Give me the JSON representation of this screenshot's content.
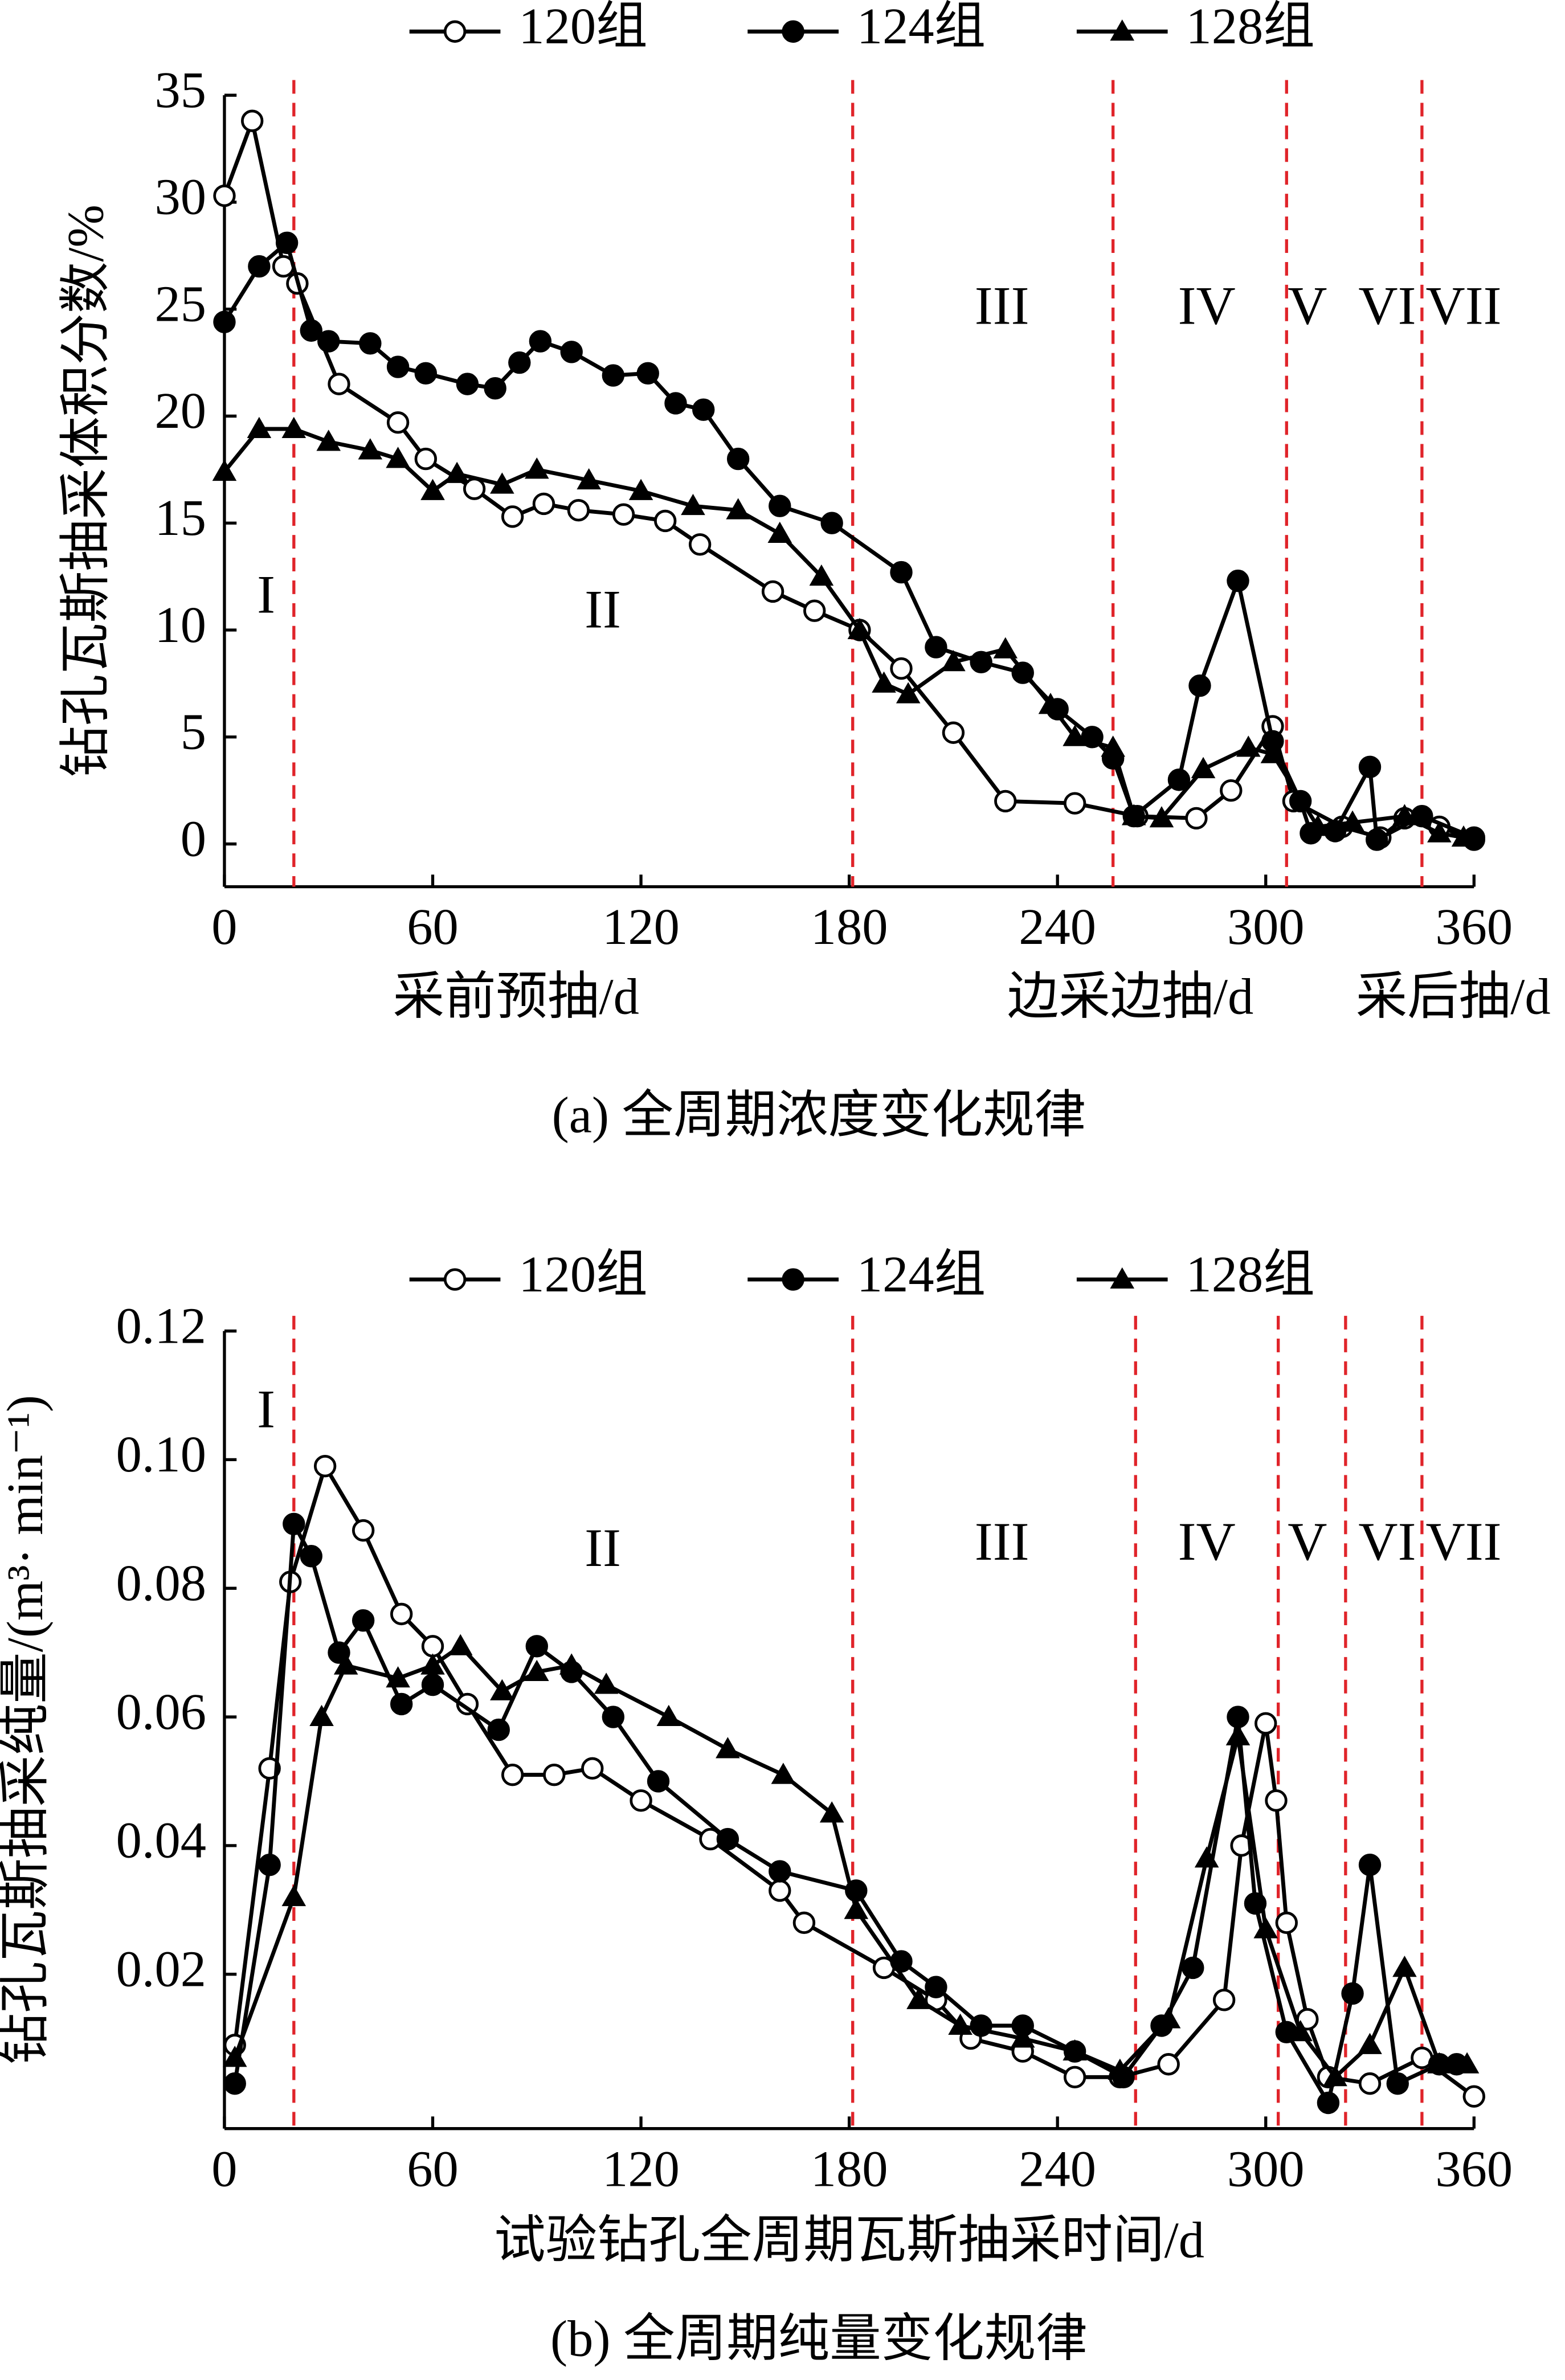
{
  "chart_data": [
    {
      "type": "line",
      "ylabel": "钻孔瓦斯抽采体积分数/%",
      "xlabels": [
        {
          "text": "采前预抽/d",
          "x": 84
        },
        {
          "text": "边采边抽/d",
          "x": 261
        },
        {
          "text": "采后抽/d",
          "x": 354
        }
      ],
      "caption": "(a)  全周期浓度变化规律",
      "xlim": [
        0,
        360
      ],
      "xticks": [
        0,
        60,
        120,
        180,
        240,
        300,
        360
      ],
      "ylim": [
        -2,
        35
      ],
      "yticks": [
        0,
        5,
        10,
        15,
        20,
        25,
        30,
        35
      ],
      "vlines": [
        20,
        181,
        256,
        306,
        345
      ],
      "vline_color": "#e0242a",
      "annotations": [
        {
          "text": "I",
          "x": 12,
          "y": 11.4
        },
        {
          "text": "II",
          "x": 109,
          "y": 10.7
        },
        {
          "text": "III",
          "x": 224,
          "y": 24.9
        },
        {
          "text": "IV",
          "x": 283,
          "y": 24.9
        },
        {
          "text": "V",
          "x": 312,
          "y": 24.9
        },
        {
          "text": "VI",
          "x": 335,
          "y": 24.9
        },
        {
          "text": "VII",
          "x": 357,
          "y": 24.9
        }
      ],
      "series": [
        {
          "name": "120组",
          "color": "#000000",
          "marker": "circle-open",
          "x": [
            0,
            8,
            17,
            21,
            33,
            50,
            58,
            72,
            83,
            92,
            102,
            115,
            127,
            137,
            158,
            170,
            183,
            195,
            210,
            225,
            245,
            263,
            280,
            290,
            302,
            308,
            322,
            333,
            340,
            350,
            360
          ],
          "values": [
            30.3,
            33.8,
            27,
            26.2,
            21.5,
            19.7,
            18,
            16.6,
            15.3,
            15.9,
            15.6,
            15.4,
            15.1,
            14,
            11.8,
            10.9,
            10,
            8.2,
            5.2,
            2,
            1.9,
            1.3,
            1.2,
            2.5,
            5.5,
            2,
            0.8,
            0.3,
            1.2,
            0.8,
            0.2
          ]
        },
        {
          "name": "124组",
          "color": "#000000",
          "marker": "circle",
          "x": [
            0,
            10,
            18,
            25,
            30,
            42,
            50,
            58,
            70,
            78,
            85,
            91,
            100,
            112,
            122,
            130,
            138,
            148,
            160,
            175,
            195,
            205,
            218,
            230,
            240,
            250,
            256,
            262,
            275,
            281,
            292,
            302,
            310,
            313,
            320,
            330,
            332,
            345,
            360
          ],
          "values": [
            24.4,
            27,
            28.1,
            24,
            23.5,
            23.4,
            22.3,
            22,
            21.5,
            21.3,
            22.5,
            23.5,
            23,
            21.9,
            22,
            20.6,
            20.3,
            18,
            15.8,
            15,
            12.7,
            9.2,
            8.5,
            8,
            6.3,
            5,
            4,
            1.3,
            3,
            7.4,
            12.3,
            4.8,
            2,
            0.5,
            0.6,
            3.6,
            0.2,
            1.3,
            0.3
          ]
        },
        {
          "name": "128组",
          "color": "#000000",
          "marker": "triangle",
          "x": [
            0,
            10,
            20,
            30,
            42,
            50,
            60,
            67,
            80,
            90,
            105,
            120,
            135,
            148,
            160,
            172,
            183,
            190,
            197,
            210,
            225,
            238,
            245,
            256,
            262,
            270,
            282,
            295,
            302,
            315,
            325,
            340,
            350,
            357
          ],
          "values": [
            17.4,
            19.4,
            19.4,
            18.8,
            18.4,
            18,
            16.5,
            17.3,
            16.8,
            17.5,
            17,
            16.5,
            15.8,
            15.6,
            14.5,
            12.5,
            10,
            7.5,
            7,
            8.5,
            9.1,
            6.5,
            5,
            4.5,
            1.3,
            1.2,
            3.5,
            4.5,
            4.2,
            0.8,
            1,
            1.3,
            0.5,
            0.3
          ]
        }
      ]
    },
    {
      "type": "line",
      "ylabel": "钻孔瓦斯抽采纯量/(m³· min⁻¹)",
      "xlabel": "试验钻孔全周期瓦斯抽采时间/d",
      "caption": "(b)  全周期纯量变化规律",
      "xlim": [
        0,
        360
      ],
      "xticks": [
        0,
        60,
        120,
        180,
        240,
        300,
        360
      ],
      "ylim": [
        -0.004,
        0.12
      ],
      "yticks": [
        0.02,
        0.04,
        0.06,
        0.08,
        {
          "value": 0.1,
          "label": "0.10"
        },
        0.12
      ],
      "vlines": [
        20,
        181,
        262.5,
        303.6,
        323,
        345
      ],
      "vline_color": "#e0242a",
      "annotations": [
        {
          "text": "I",
          "x": 12,
          "y": 0.107
        },
        {
          "text": "II",
          "x": 109,
          "y": 0.0854
        },
        {
          "text": "III",
          "x": 224,
          "y": 0.0864
        },
        {
          "text": "IV",
          "x": 283,
          "y": 0.0864
        },
        {
          "text": "V",
          "x": 312,
          "y": 0.0864
        },
        {
          "text": "VI",
          "x": 335,
          "y": 0.0864
        },
        {
          "text": "VII",
          "x": 357,
          "y": 0.0864
        }
      ],
      "series": [
        {
          "name": "120组",
          "color": "#000000",
          "marker": "circle-open",
          "x": [
            3,
            13,
            19,
            29,
            40,
            51,
            60,
            70,
            83,
            95,
            106,
            120,
            140,
            160,
            167,
            190,
            205,
            215,
            230,
            245,
            258,
            272,
            288,
            293,
            300,
            303,
            306,
            312,
            318,
            330,
            345,
            360
          ],
          "values": [
            0.009,
            0.052,
            0.081,
            0.099,
            0.089,
            0.076,
            0.071,
            0.062,
            0.051,
            0.051,
            0.052,
            0.047,
            0.041,
            0.033,
            0.028,
            0.021,
            0.016,
            0.01,
            0.008,
            0.004,
            0.004,
            0.006,
            0.016,
            0.04,
            0.059,
            0.047,
            0.028,
            0.013,
            0.004,
            0.003,
            0.007,
            0.001
          ]
        },
        {
          "name": "124组",
          "color": "#000000",
          "marker": "circle",
          "x": [
            3,
            13,
            20,
            25,
            33,
            40,
            51,
            60,
            79,
            90,
            100,
            112,
            125,
            145,
            160,
            182,
            195,
            205,
            218,
            230,
            245,
            259,
            270,
            279,
            292,
            297,
            306,
            318,
            325,
            330,
            338,
            350,
            355
          ],
          "values": [
            0.003,
            0.037,
            0.09,
            0.085,
            0.07,
            0.075,
            0.062,
            0.065,
            0.058,
            0.071,
            0.067,
            0.06,
            0.05,
            0.041,
            0.036,
            0.033,
            0.022,
            0.018,
            0.012,
            0.012,
            0.008,
            0.004,
            0.012,
            0.021,
            0.06,
            0.031,
            0.011,
            0,
            0.017,
            0.037,
            0.003,
            0.006,
            0.006
          ]
        },
        {
          "name": "128组",
          "color": "#000000",
          "marker": "triangle",
          "x": [
            3,
            20,
            28,
            35,
            50,
            60,
            68,
            80,
            90,
            100,
            110,
            128,
            145,
            161,
            175,
            182,
            200,
            212,
            230,
            245,
            258,
            272,
            283,
            292,
            300,
            310,
            320,
            330,
            340,
            350,
            358
          ],
          "values": [
            0.007,
            0.032,
            0.06,
            0.068,
            0.066,
            0.068,
            0.071,
            0.064,
            0.067,
            0.068,
            0.065,
            0.06,
            0.055,
            0.051,
            0.045,
            0.03,
            0.016,
            0.012,
            0.01,
            0.008,
            0.005,
            0.013,
            0.038,
            0.057,
            0.027,
            0.011,
            0.004,
            0.009,
            0.021,
            0.006,
            0.006
          ]
        }
      ]
    }
  ]
}
